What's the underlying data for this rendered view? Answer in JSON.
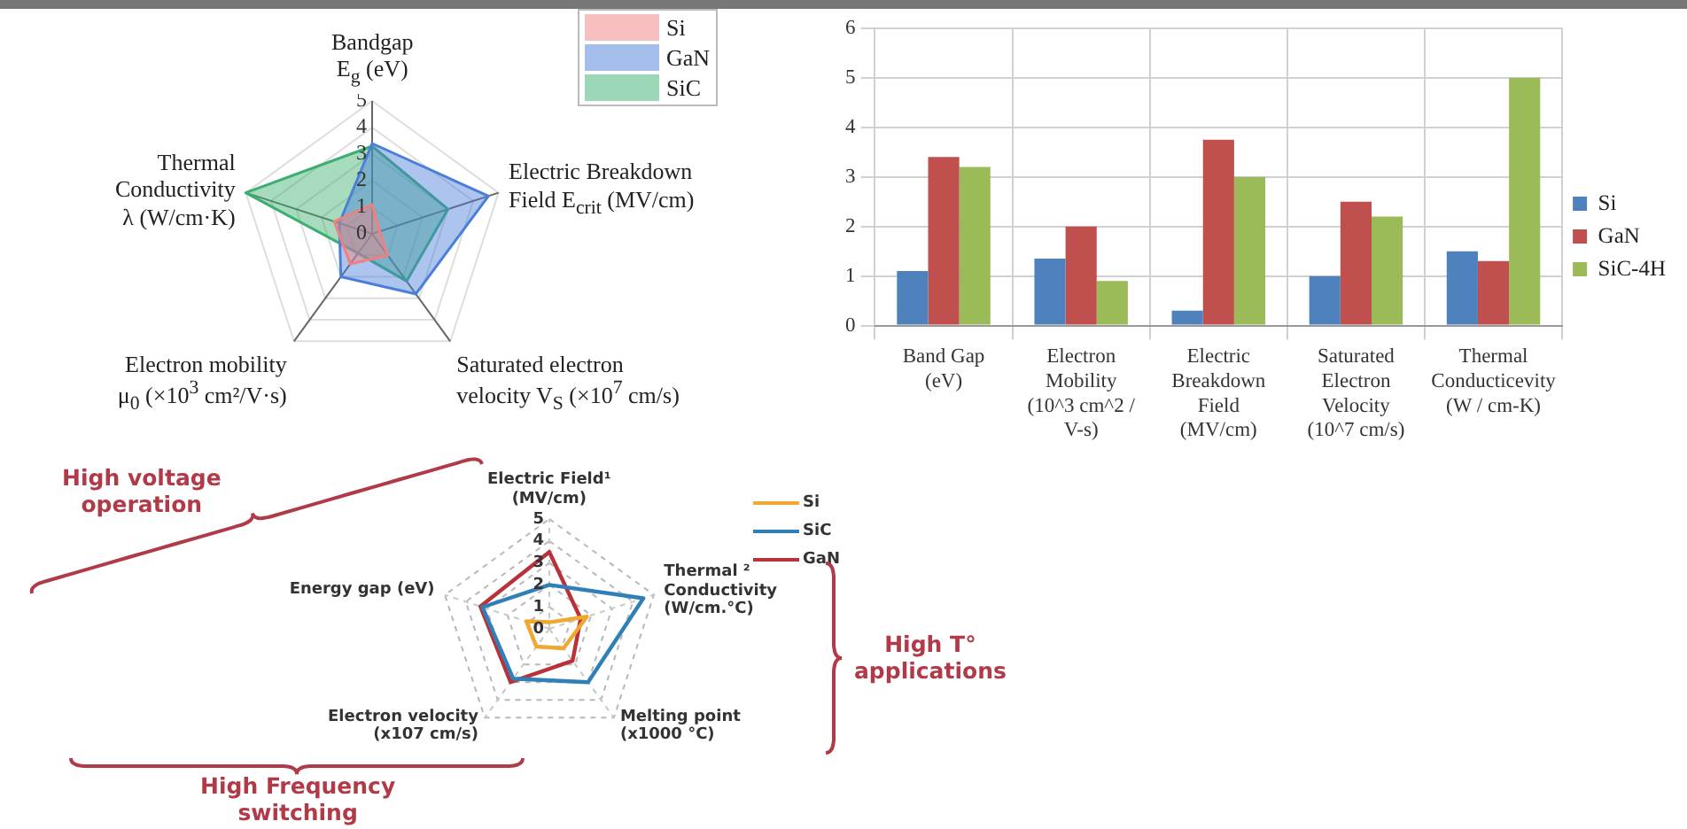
{
  "chart_data": [
    {
      "type": "radar",
      "categories": [
        "Bandgap\nE$_{g}$ (eV)",
        "Electric Breakdown\nField E$_{crit}$ (MV/cm)",
        "Saturated electron\nvelocity V$_{S}$ (×10$^{7}$ cm/s)",
        "Electron mobility\nμ$_{0}$ (×10$^{3}$ cm²/V·s)",
        "Thermal\nConductivity\nλ (W/cm·K)"
      ],
      "series": [
        {
          "name": "Si",
          "color": "#f08080",
          "values": [
            1.1,
            0.3,
            1.0,
            1.4,
            1.5
          ]
        },
        {
          "name": "GaN",
          "color": "#4a7fd9",
          "values": [
            3.4,
            4.6,
            2.8,
            2.0,
            1.3
          ]
        },
        {
          "name": "SiC",
          "color": "#3aaf6f",
          "values": [
            3.3,
            3.0,
            2.2,
            0.9,
            5.0
          ]
        }
      ],
      "ylim": [
        0,
        5
      ],
      "yticks": [
        0,
        1,
        2,
        3,
        4,
        5
      ],
      "grid": true,
      "legend": "top right"
    },
    {
      "type": "bar",
      "categories": [
        "Band Gap\n(eV)",
        "Electron\nMobility\n(10^3 cm^2 /\nV-s)",
        "Electric\nBreakdown\nField\n(MV/cm)",
        "Saturated\nElectron\nVelocity\n(10^7 cm/s)",
        "Thermal\nConducticevity\n(W / cm-K)"
      ],
      "series": [
        {
          "name": "Si",
          "color": "#4f81bd",
          "values": [
            1.1,
            1.35,
            0.3,
            1.0,
            1.5
          ]
        },
        {
          "name": "GaN",
          "color": "#c0504d",
          "values": [
            3.4,
            2.0,
            3.75,
            2.5,
            1.3
          ]
        },
        {
          "name": "SiC-4H",
          "color": "#9bbb59",
          "values": [
            3.2,
            0.9,
            3.0,
            2.2,
            5.0
          ]
        }
      ],
      "ylim": [
        0,
        6
      ],
      "yticks": [
        0,
        1,
        2,
        3,
        4,
        5,
        6
      ],
      "grid": true,
      "legend": "right"
    },
    {
      "type": "radar",
      "categories": [
        "Electric Field¹\n(MV/cm)",
        "Thermal ²\nConductivity\n(W/cm.°C)",
        "Melting point\n(x1000 °C)",
        "Electron velocity\n(x107 cm/s)",
        "Energy gap (eV)"
      ],
      "series": [
        {
          "name": "Si",
          "color": "#f0a830",
          "values": [
            0.3,
            1.8,
            1.1,
            1.0,
            1.1
          ]
        },
        {
          "name": "SiC",
          "color": "#2f7fb8",
          "values": [
            2.0,
            4.5,
            3.0,
            2.8,
            3.2
          ]
        },
        {
          "name": "GaN",
          "color": "#b8323a",
          "values": [
            3.5,
            1.5,
            1.8,
            3.0,
            3.3
          ]
        }
      ],
      "ylim": [
        0,
        5
      ],
      "yticks": [
        0,
        1,
        2,
        3,
        4,
        5
      ],
      "grid": true,
      "legend": "top right",
      "annotations": [
        "High voltage\noperation",
        "High T°\napplications",
        "High Frequency\nswitching"
      ]
    }
  ]
}
